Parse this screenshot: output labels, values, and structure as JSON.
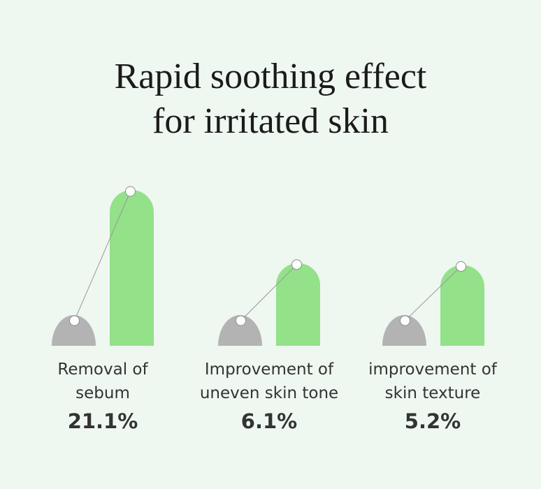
{
  "title_lines": [
    "Rapid soothing effect",
    "for irritated skin"
  ],
  "chart_data": {
    "type": "bar",
    "categories": [
      [
        "Removal of",
        "sebum"
      ],
      [
        "Improvement of",
        "uneven skin tone"
      ],
      [
        "improvement of",
        "skin texture"
      ]
    ],
    "values": [
      21.1,
      6.1,
      5.2
    ],
    "value_labels": [
      "21.1%",
      "6.1%",
      "5.2%"
    ],
    "colors": {
      "before": "#b3b3b3",
      "after": "#93e189",
      "connector": "#9a9a9a"
    }
  }
}
